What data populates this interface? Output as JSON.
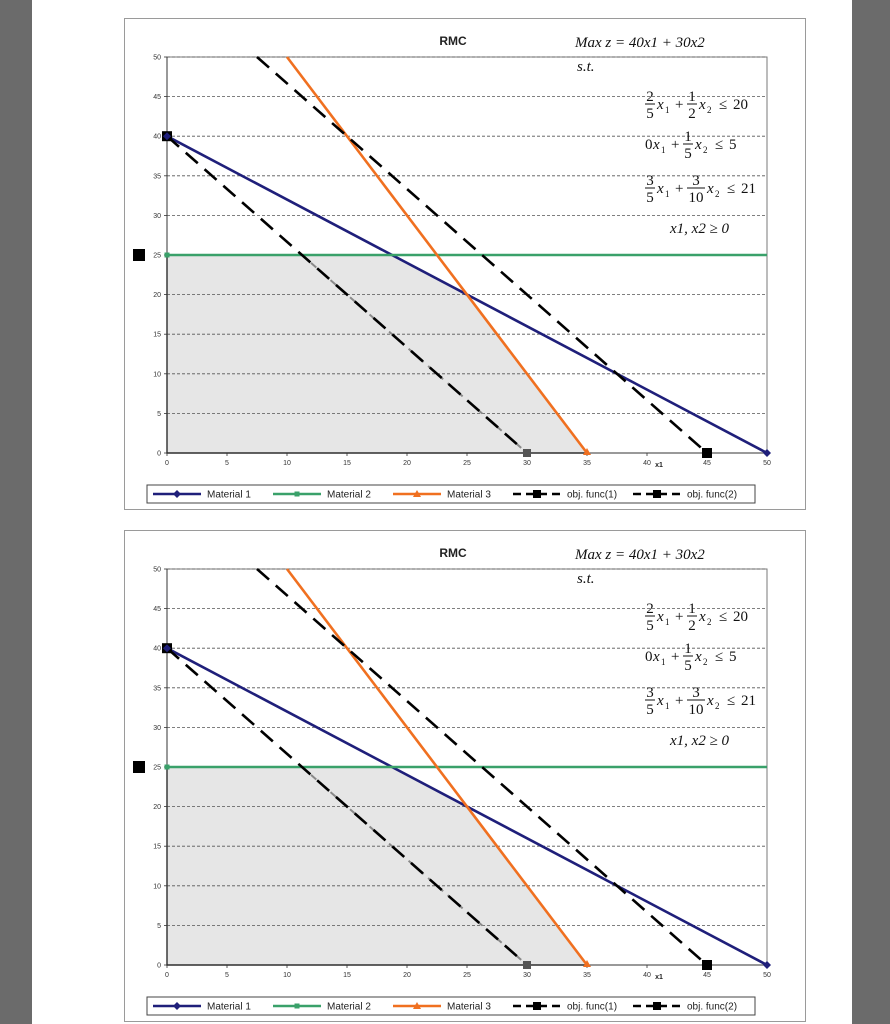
{
  "chart_data": [
    {
      "type": "line",
      "title": "RMC",
      "xlabel": "x1",
      "ylabel": "",
      "xlim": [
        0,
        50
      ],
      "ylim": [
        0,
        50
      ],
      "xticks": [
        0,
        5,
        10,
        15,
        20,
        25,
        30,
        35,
        40,
        45,
        50
      ],
      "yticks": [
        0,
        5,
        10,
        15,
        20,
        25,
        30,
        35,
        40,
        45,
        50
      ],
      "grid": "horizontal-dashed",
      "legend_position": "bottom",
      "feasible_region": [
        [
          0,
          0
        ],
        [
          0,
          25
        ],
        [
          18.75,
          25
        ],
        [
          25,
          20
        ],
        [
          35,
          0
        ]
      ],
      "objective_text": "Max z = 40x1 + 30x2",
      "st_text": "s.t.",
      "constraints_text": [
        "2/5 x1 + 1/2 x2 ≤ 20",
        "0x1 + 1/5 x2 ≤ 5",
        "3/5 x1 + 3/10 x2 ≤ 21",
        "x1, x2 ≥ 0"
      ],
      "series": [
        {
          "name": "Material 1",
          "color": "#1f1f7a",
          "dash": "solid",
          "marker": "diamond",
          "points": [
            [
              0,
              40
            ],
            [
              50,
              0
            ]
          ]
        },
        {
          "name": "Material 2",
          "color": "#3aa16a",
          "dash": "solid",
          "marker": "square",
          "points": [
            [
              0,
              25
            ],
            [
              50,
              25
            ]
          ]
        },
        {
          "name": "Material 3",
          "color": "#f07020",
          "dash": "solid",
          "marker": "triangle",
          "points": [
            [
              10,
              50
            ],
            [
              35,
              0
            ]
          ]
        },
        {
          "name": "obj. func(1)",
          "color": "#000000",
          "dash": "dashed",
          "marker": "square",
          "points": [
            [
              0,
              40
            ],
            [
              30,
              0
            ]
          ]
        },
        {
          "name": "obj. func(2)",
          "color": "#000000",
          "dash": "dashed",
          "marker": "square",
          "points": [
            [
              7.5,
              50
            ],
            [
              45,
              0
            ]
          ]
        }
      ]
    },
    {
      "type": "line",
      "title": "RMC",
      "xlabel": "x1",
      "ylabel": "",
      "xlim": [
        0,
        50
      ],
      "ylim": [
        0,
        50
      ],
      "xticks": [
        0,
        5,
        10,
        15,
        20,
        25,
        30,
        35,
        40,
        45,
        50
      ],
      "yticks": [
        0,
        5,
        10,
        15,
        20,
        25,
        30,
        35,
        40,
        45,
        50
      ],
      "grid": "horizontal-dashed",
      "legend_position": "bottom",
      "feasible_region": [
        [
          0,
          0
        ],
        [
          0,
          25
        ],
        [
          18.75,
          25
        ],
        [
          25,
          20
        ],
        [
          35,
          0
        ]
      ],
      "objective_text": "Max z = 40x1 + 30x2",
      "st_text": "s.t.",
      "constraints_text": [
        "2/5 x1 + 1/2 x2 ≤ 20",
        "0x1 + 1/5 x2 ≤ 5",
        "3/5 x1 + 3/10 x2 ≤ 21",
        "x1, x2 ≥ 0"
      ],
      "series": [
        {
          "name": "Material 1",
          "color": "#1f1f7a",
          "dash": "solid",
          "marker": "diamond",
          "points": [
            [
              0,
              40
            ],
            [
              50,
              0
            ]
          ]
        },
        {
          "name": "Material 2",
          "color": "#3aa16a",
          "dash": "solid",
          "marker": "square",
          "points": [
            [
              0,
              25
            ],
            [
              50,
              25
            ]
          ]
        },
        {
          "name": "Material 3",
          "color": "#f07020",
          "dash": "solid",
          "marker": "triangle",
          "points": [
            [
              10,
              50
            ],
            [
              35,
              0
            ]
          ]
        },
        {
          "name": "obj. func(1)",
          "color": "#000000",
          "dash": "dashed",
          "marker": "square",
          "points": [
            [
              0,
              40
            ],
            [
              30,
              0
            ]
          ]
        },
        {
          "name": "obj. func(2)",
          "color": "#000000",
          "dash": "dashed",
          "marker": "square",
          "points": [
            [
              7.5,
              50
            ],
            [
              45,
              0
            ]
          ]
        }
      ]
    }
  ]
}
